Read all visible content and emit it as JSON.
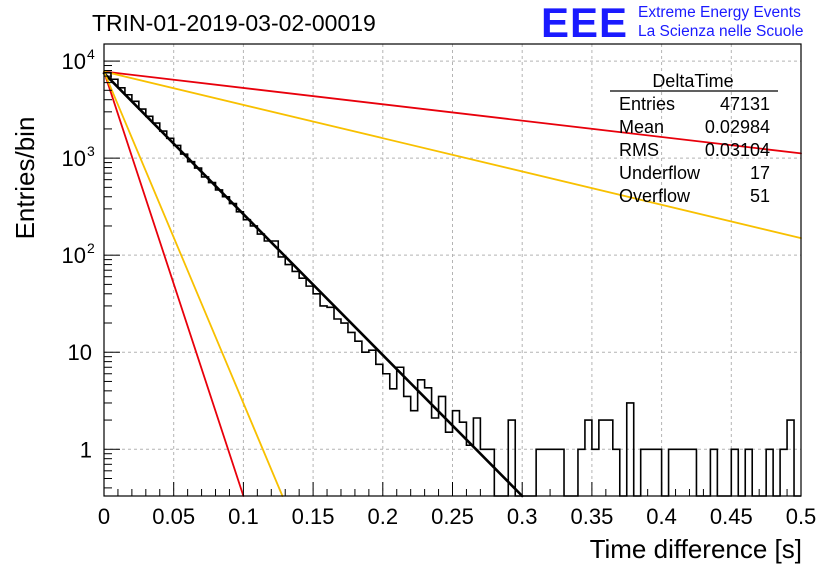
{
  "logo": {
    "mark": "EEE",
    "line1": "Extreme Energy Events",
    "line2": "La Scienza nelle Scuole"
  },
  "stats": {
    "title": "DeltaTime",
    "rows": [
      {
        "label": "Entries",
        "value": "47131"
      },
      {
        "label": "Mean",
        "value": "0.02984"
      },
      {
        "label": "RMS",
        "value": "0.03104"
      },
      {
        "label": "Underflow",
        "value": "17"
      },
      {
        "label": "Overflow",
        "value": "51"
      }
    ]
  },
  "chart_data": {
    "type": "histogram",
    "title": "TRIN-01-2019-03-02-00019",
    "xlabel": "Time difference [s]",
    "ylabel": "Entries/bin",
    "xlim": [
      0,
      0.5
    ],
    "ylim": [
      0.33,
      15000
    ],
    "yscale": "log",
    "grid": true,
    "xticks": [
      "0",
      "0.05",
      "0.1",
      "0.15",
      "0.2",
      "0.25",
      "0.3",
      "0.35",
      "0.4",
      "0.45",
      "0.5"
    ],
    "yticks": [
      {
        "value": 1,
        "label": "1"
      },
      {
        "value": 10,
        "label": "10"
      },
      {
        "value": 100,
        "label": "10",
        "exp": "2"
      },
      {
        "value": 1000,
        "label": "10",
        "exp": "3"
      },
      {
        "value": 10000,
        "label": "10",
        "exp": "4"
      }
    ],
    "bin_width": 0.005,
    "histogram": [
      7600,
      6500,
      5300,
      4500,
      3850,
      3200,
      2700,
      2300,
      1900,
      1600,
      1350,
      1100,
      920,
      790,
      640,
      560,
      470,
      400,
      340,
      280,
      232,
      200,
      165,
      140,
      140,
      96,
      80,
      68,
      58,
      48,
      40,
      30,
      29,
      22,
      20,
      16,
      13,
      10,
      10.5,
      7.5,
      6,
      4.2,
      7,
      3.5,
      2.5,
      5.2,
      4.3,
      2.1,
      3.5,
      1.5,
      2.5,
      1.9,
      1.1,
      2.1,
      1,
      1,
      0,
      0.1,
      2,
      0.1,
      0,
      0,
      1,
      1,
      1,
      1,
      0,
      0,
      1,
      2,
      1,
      2,
      2,
      1,
      0,
      3,
      0,
      1,
      1,
      1,
      0,
      1,
      1,
      1,
      1,
      0,
      0,
      1,
      0,
      0,
      1,
      0,
      1,
      0,
      0,
      1,
      0,
      1,
      2,
      0
    ],
    "curves": [
      {
        "color": "#000000",
        "x": [
          0,
          0.3
        ],
        "y": [
          7500,
          0.33
        ],
        "width": 2.6
      },
      {
        "color": "#e8000b",
        "x": [
          0,
          0.1
        ],
        "y": [
          7800,
          0.33
        ],
        "width": 1.8
      },
      {
        "color": "#f8c000",
        "x": [
          0,
          0.128
        ],
        "y": [
          7800,
          0.33
        ],
        "width": 1.8
      },
      {
        "color": "#e8000b",
        "x": [
          0,
          0.5
        ],
        "y": [
          7800,
          1120
        ],
        "width": 1.8
      },
      {
        "color": "#f8c000",
        "x": [
          0,
          0.5
        ],
        "y": [
          7800,
          150
        ],
        "width": 1.8
      }
    ]
  }
}
